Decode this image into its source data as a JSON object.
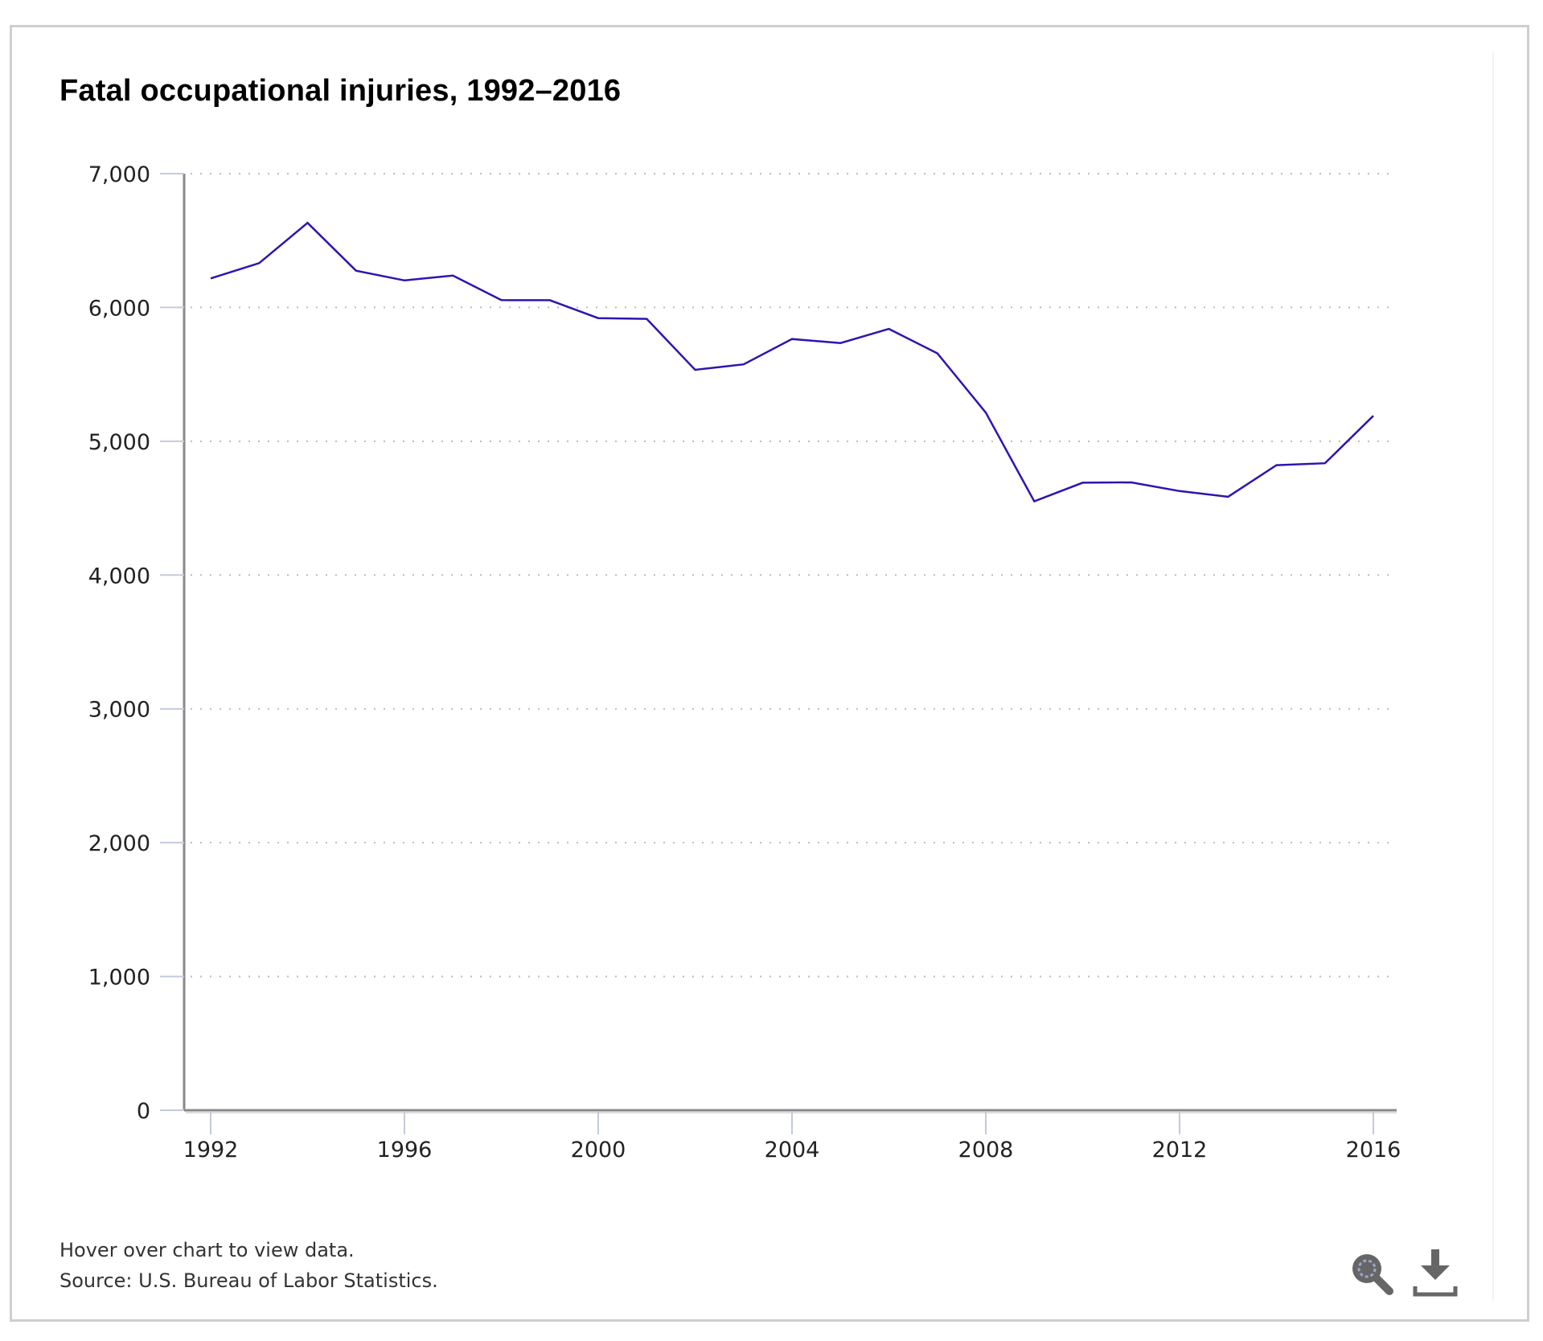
{
  "colors": {
    "line": "#2b16b0",
    "axis": "#888888",
    "tick": "#c3cadb",
    "grid": "#bbbbbb",
    "icon": "#666666",
    "icon_accent": "#9aa7c9"
  },
  "footer": {
    "hint": "Hover over chart to view data.",
    "source": "Source: U.S. Bureau of Labor Statistics."
  },
  "toolbar": {
    "zoom_icon": "zoom-magnifier-icon",
    "download_icon": "download-icon"
  },
  "chart_data": {
    "type": "line",
    "title": "Fatal occupational injuries, 1992–2016",
    "xlabel": "",
    "ylabel": "",
    "x": [
      1992,
      1993,
      1994,
      1995,
      1996,
      1997,
      1998,
      1999,
      2000,
      2001,
      2002,
      2003,
      2004,
      2005,
      2006,
      2007,
      2008,
      2009,
      2010,
      2011,
      2012,
      2013,
      2014,
      2015,
      2016
    ],
    "series": [
      {
        "name": "Fatal occupational injuries",
        "values": [
          6217,
          6331,
          6632,
          6275,
          6202,
          6238,
          6055,
          6054,
          5920,
          5915,
          5534,
          5575,
          5764,
          5734,
          5840,
          5657,
          5214,
          4551,
          4690,
          4693,
          4628,
          4585,
          4821,
          4836,
          5190
        ]
      }
    ],
    "xlim": [
      1992,
      2016
    ],
    "ylim": [
      0,
      7000
    ],
    "xticks": [
      1992,
      1996,
      2000,
      2004,
      2008,
      2012,
      2016
    ],
    "xtick_labels": [
      "1992",
      "1996",
      "2000",
      "2004",
      "2008",
      "2012",
      "2016"
    ],
    "yticks": [
      0,
      1000,
      2000,
      3000,
      4000,
      5000,
      6000,
      7000
    ],
    "ytick_labels": [
      "0",
      "1,000",
      "2,000",
      "3,000",
      "4,000",
      "5,000",
      "6,000",
      "7,000"
    ],
    "grid": "horizontal-dotted",
    "legend": "none"
  }
}
